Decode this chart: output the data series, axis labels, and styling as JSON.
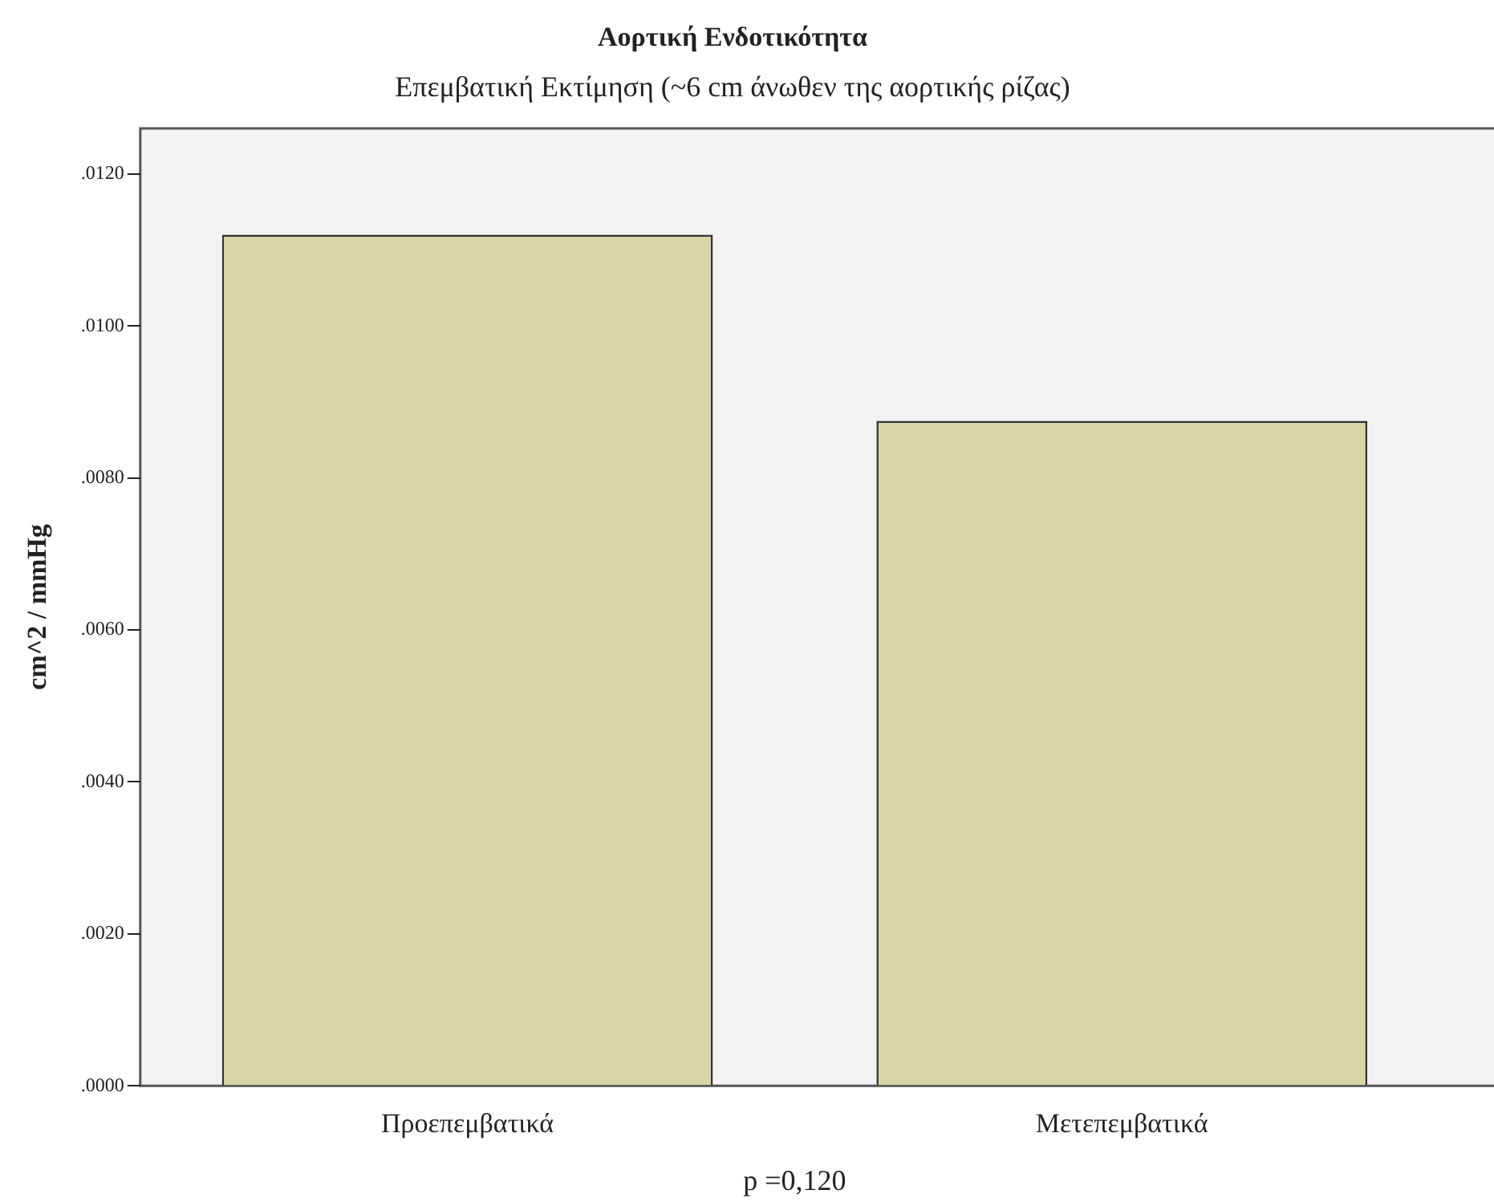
{
  "chart_data": {
    "type": "bar",
    "title": "Αορτική Ενδοτικότητα",
    "subtitle": "Επεμβατική Εκτίμηση (~6 cm άνωθεν της αορτικής ρίζας)",
    "ylabel": "cm^2 / mmHg",
    "categories": [
      "Προεπεμβατικά",
      "Μετεπεμβατικά"
    ],
    "values": [
      0.0112,
      0.00875
    ],
    "color": "#d9d4a5",
    "ylim": [
      0,
      0.0126
    ],
    "yticks": [
      {
        "value": 0,
        "label": ".0000"
      },
      {
        "value": 0.002,
        "label": ".0020"
      },
      {
        "value": 0.004,
        "label": ".0040"
      },
      {
        "value": 0.006,
        "label": ".0060"
      },
      {
        "value": 0.008,
        "label": ".0080"
      },
      {
        "value": 0.01,
        "label": ".0100"
      },
      {
        "value": 0.012,
        "label": ".0120"
      }
    ],
    "grid": false,
    "legend": false,
    "annotations": [
      "p =0,120"
    ]
  }
}
